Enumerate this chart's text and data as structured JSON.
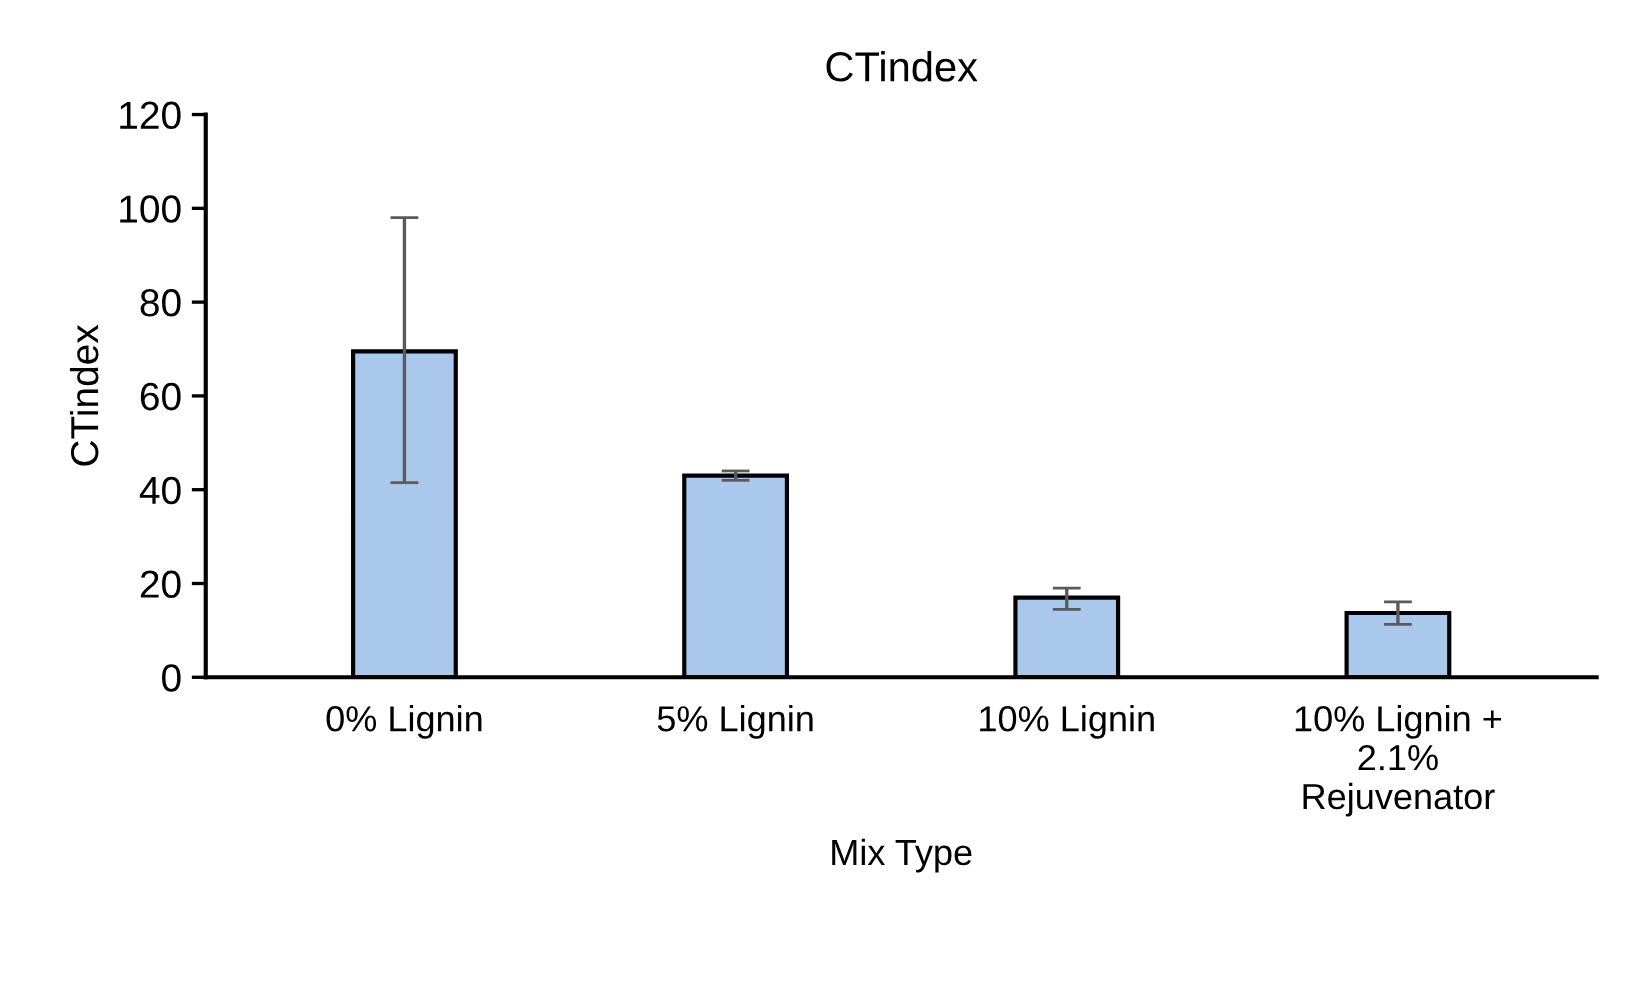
{
  "chart_data": {
    "type": "bar",
    "title": "CTindex",
    "xlabel": "Mix Type",
    "ylabel": "CTindex",
    "categories": [
      "0% Lignin",
      "5% Lignin",
      "10% Lignin",
      "10% Lignin +\n2.1%\nRejuvenator"
    ],
    "values": [
      69.5,
      43,
      17,
      13.7
    ],
    "errors": [
      [
        41.5,
        98
      ],
      [
        42,
        44
      ],
      [
        14.5,
        19
      ],
      [
        11.3,
        16.1
      ]
    ],
    "color": "#a9c8ec",
    "ylim": [
      0,
      120
    ],
    "yticks": [
      0,
      20,
      40,
      60,
      80,
      100,
      120
    ],
    "grid": false,
    "legend": false
  }
}
